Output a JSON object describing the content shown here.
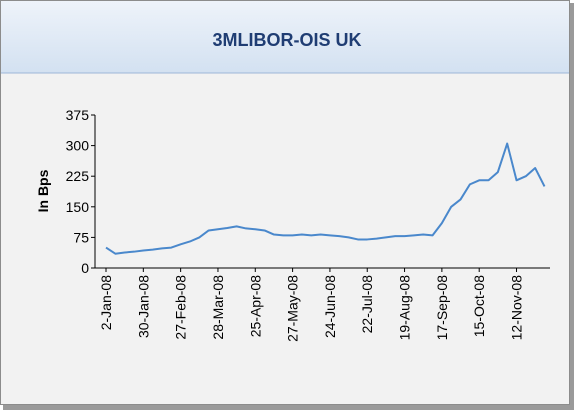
{
  "chart_data": {
    "type": "line",
    "title": "3MLIBOR-OIS  UK",
    "y_label": "In Bps",
    "categories": [
      "2-Jan-08",
      null,
      null,
      null,
      "30-Jan-08",
      null,
      null,
      null,
      "27-Feb-08",
      null,
      null,
      null,
      "28-Mar-08",
      null,
      null,
      null,
      "25-Apr-08",
      null,
      null,
      null,
      "27-May-08",
      null,
      null,
      null,
      "24-Jun-08",
      null,
      null,
      null,
      "22-Jul-08",
      null,
      null,
      null,
      "19-Aug-08",
      null,
      null,
      null,
      "17-Sep-08",
      null,
      null,
      null,
      "15-Oct-08",
      null,
      null,
      null,
      "12-Nov-08",
      null,
      null,
      null
    ],
    "series": [
      {
        "name": "3MLIBOR-OIS UK",
        "color": "#4a88cc",
        "values": [
          50,
          35,
          38,
          40,
          43,
          45,
          48,
          50,
          58,
          65,
          75,
          92,
          95,
          98,
          102,
          97,
          95,
          92,
          82,
          80,
          80,
          82,
          80,
          82,
          80,
          78,
          75,
          70,
          70,
          72,
          75,
          78,
          78,
          80,
          82,
          80,
          110,
          150,
          168,
          205,
          215,
          215,
          235,
          305,
          215,
          225,
          245,
          200
        ]
      }
    ],
    "ylim": [
      0,
      375
    ],
    "yticks": [
      0,
      75,
      150,
      225,
      300,
      375
    ],
    "grid": false
  }
}
